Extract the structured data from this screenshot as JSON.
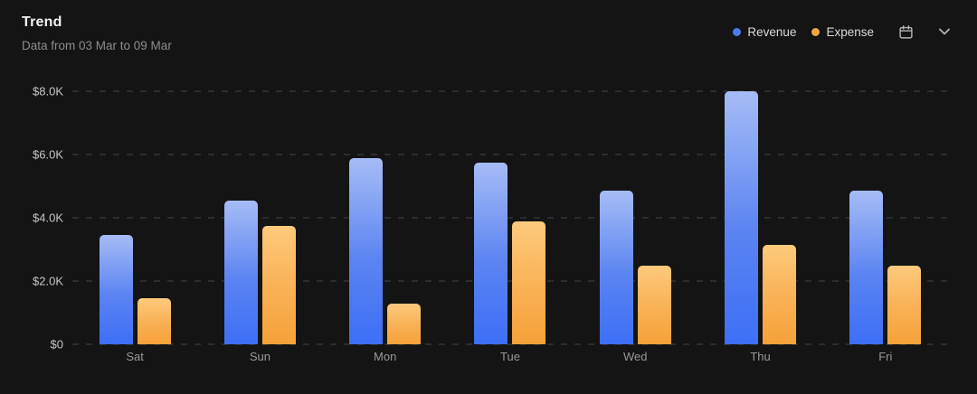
{
  "header": {
    "title": "Trend",
    "subtitle": "Data from 03 Mar to 09 Mar"
  },
  "legend": {
    "position": "top-right",
    "items": [
      {
        "label": "Revenue",
        "color": "#4c7bf4"
      },
      {
        "label": "Expense",
        "color": "#f0a63c"
      }
    ]
  },
  "toolbar": {
    "icons": [
      "calendar-icon",
      "chevron-down-icon"
    ]
  },
  "colors": {
    "background": "#141414",
    "gridline": "#2c2c2c",
    "accent_blue": "#4c7bf4",
    "accent_orange": "#f0a63c"
  },
  "chart_data": {
    "type": "bar",
    "title": "Trend",
    "xlabel": "",
    "ylabel": "",
    "categories": [
      "Sat",
      "Sun",
      "Mon",
      "Tue",
      "Wed",
      "Thu",
      "Fri"
    ],
    "series": [
      {
        "name": "Revenue",
        "color_top": "#a6bcf6",
        "color_mid": "#5b84f2",
        "color_bottom": "#3d6ff6",
        "values": [
          3450,
          4550,
          5900,
          5750,
          4850,
          8000,
          4850
        ]
      },
      {
        "name": "Expense",
        "color_top": "#fdca7c",
        "color_mid": "#f9b054",
        "color_bottom": "#f6a239",
        "values": [
          1450,
          3750,
          1300,
          3900,
          2500,
          3150,
          2500
        ]
      }
    ],
    "ylim": [
      0,
      8000
    ],
    "yticks": [
      0,
      2000,
      4000,
      6000,
      8000
    ],
    "ytick_labels": [
      "$0",
      "$2.0K",
      "$4.0K",
      "$6.0K",
      "$8.0K"
    ],
    "grid": "horizontal-dashed",
    "legend_position": "top-right"
  }
}
